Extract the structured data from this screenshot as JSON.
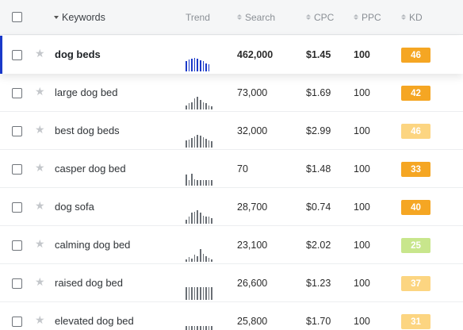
{
  "header": {
    "keywords": "Keywords",
    "trend": "Trend",
    "search": "Search",
    "cpc": "CPC",
    "ppc": "PPC",
    "kd": "KD"
  },
  "rows": [
    {
      "keyword": "dog beds",
      "search": "462,000",
      "cpc": "$1.45",
      "ppc": "100",
      "kd": "46",
      "kd_color": "#f5a623",
      "trend": [
        0.75,
        0.9,
        0.95,
        1.0,
        0.95,
        0.85,
        0.75,
        0.6,
        0.5
      ],
      "selected": true
    },
    {
      "keyword": "large dog bed",
      "search": "73,000",
      "cpc": "$1.69",
      "ppc": "100",
      "kd": "42",
      "kd_color": "#f5a623",
      "trend": [
        0.3,
        0.45,
        0.5,
        0.8,
        0.95,
        0.7,
        0.55,
        0.45,
        0.3,
        0.25
      ]
    },
    {
      "keyword": "best dog beds",
      "search": "32,000",
      "cpc": "$2.99",
      "ppc": "100",
      "kd": "46",
      "kd_color": "#fcd581",
      "trend": [
        0.5,
        0.6,
        0.7,
        0.85,
        0.95,
        0.9,
        0.75,
        0.65,
        0.5,
        0.45
      ]
    },
    {
      "keyword": "casper dog bed",
      "search": "70",
      "cpc": "$1.48",
      "ppc": "100",
      "kd": "33",
      "kd_color": "#f5a623",
      "trend": [
        0.85,
        0.4,
        0.9,
        0.45,
        0.4,
        0.4,
        0.4,
        0.4,
        0.4,
        0.4
      ]
    },
    {
      "keyword": "dog sofa",
      "search": "28,700",
      "cpc": "$0.74",
      "ppc": "100",
      "kd": "40",
      "kd_color": "#f5a623",
      "trend": [
        0.3,
        0.55,
        0.85,
        0.9,
        1.0,
        0.8,
        0.6,
        0.55,
        0.5,
        0.4
      ]
    },
    {
      "keyword": "calming dog bed",
      "search": "23,100",
      "cpc": "$2.02",
      "ppc": "100",
      "kd": "25",
      "kd_color": "#c8e68c",
      "trend": [
        0.2,
        0.35,
        0.25,
        0.55,
        0.4,
        0.95,
        0.6,
        0.4,
        0.3,
        0.2
      ]
    },
    {
      "keyword": "raised dog bed",
      "search": "26,600",
      "cpc": "$1.23",
      "ppc": "100",
      "kd": "37",
      "kd_color": "#fcd581",
      "trend": [
        0.95,
        0.95,
        0.95,
        0.95,
        0.95,
        0.95,
        0.95,
        0.95,
        0.95,
        0.95
      ]
    },
    {
      "keyword": "elevated dog bed",
      "search": "25,800",
      "cpc": "$1.70",
      "ppc": "100",
      "kd": "31",
      "kd_color": "#fcd581",
      "trend": [
        0.9,
        0.9,
        0.9,
        0.9,
        0.9,
        0.9,
        0.9,
        0.9,
        0.9,
        0.9
      ]
    }
  ]
}
